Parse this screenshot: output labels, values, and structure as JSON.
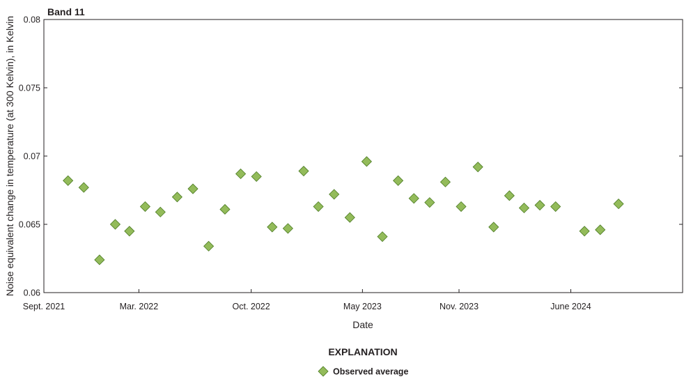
{
  "chart_data": {
    "type": "scatter",
    "title": "Band 11",
    "xlabel": "Date",
    "ylabel": "Noise equivalent change in temperature (at 300 Kelvin), in Kelvin",
    "x_ticks": [
      {
        "date": "2021-09-01",
        "label": "Sept. 2021"
      },
      {
        "date": "2022-03-01",
        "label": "Mar. 2022"
      },
      {
        "date": "2022-10-01",
        "label": "Oct. 2022"
      },
      {
        "date": "2023-05-01",
        "label": "May 2023"
      },
      {
        "date": "2023-11-01",
        "label": "Nov. 2023"
      },
      {
        "date": "2024-06-01",
        "label": "June 2024"
      }
    ],
    "xlim": [
      "2021-09-01",
      "2024-12-31"
    ],
    "ylim": [
      0.06,
      0.08
    ],
    "y_ticks": [
      {
        "value": 0.06,
        "label": "0.06"
      },
      {
        "value": 0.065,
        "label": "0.065"
      },
      {
        "value": 0.07,
        "label": "0.07"
      },
      {
        "value": 0.075,
        "label": "0.075"
      },
      {
        "value": 0.08,
        "label": "0.08"
      }
    ],
    "grid": false,
    "legend": {
      "title": "EXPLANATION",
      "placement": "bottom-center",
      "entries": [
        {
          "label": "Observed average"
        }
      ]
    },
    "series": [
      {
        "name": "Observed average",
        "marker": "diamond",
        "color": "#93bb5a",
        "edge_color": "#4a7a22",
        "points": [
          {
            "x": "2021-10-17",
            "y": 0.0682
          },
          {
            "x": "2021-11-16",
            "y": 0.0677
          },
          {
            "x": "2021-12-16",
            "y": 0.0624
          },
          {
            "x": "2022-01-15",
            "y": 0.065
          },
          {
            "x": "2022-02-11",
            "y": 0.0645
          },
          {
            "x": "2022-03-13",
            "y": 0.0663
          },
          {
            "x": "2022-04-11",
            "y": 0.0659
          },
          {
            "x": "2022-05-13",
            "y": 0.067
          },
          {
            "x": "2022-06-12",
            "y": 0.0676
          },
          {
            "x": "2022-07-12",
            "y": 0.0634
          },
          {
            "x": "2022-08-12",
            "y": 0.0661
          },
          {
            "x": "2022-09-11",
            "y": 0.0687
          },
          {
            "x": "2022-10-11",
            "y": 0.0685
          },
          {
            "x": "2022-11-10",
            "y": 0.0648
          },
          {
            "x": "2022-12-10",
            "y": 0.0647
          },
          {
            "x": "2023-01-09",
            "y": 0.0689
          },
          {
            "x": "2023-02-06",
            "y": 0.0663
          },
          {
            "x": "2023-03-08",
            "y": 0.0672
          },
          {
            "x": "2023-04-07",
            "y": 0.0655
          },
          {
            "x": "2023-05-09",
            "y": 0.0696
          },
          {
            "x": "2023-06-08",
            "y": 0.0641
          },
          {
            "x": "2023-07-08",
            "y": 0.0682
          },
          {
            "x": "2023-08-07",
            "y": 0.0669
          },
          {
            "x": "2023-09-06",
            "y": 0.0666
          },
          {
            "x": "2023-10-06",
            "y": 0.0681
          },
          {
            "x": "2023-11-05",
            "y": 0.0663
          },
          {
            "x": "2023-12-07",
            "y": 0.0692
          },
          {
            "x": "2024-01-06",
            "y": 0.0648
          },
          {
            "x": "2024-02-05",
            "y": 0.0671
          },
          {
            "x": "2024-03-04",
            "y": 0.0662
          },
          {
            "x": "2024-04-03",
            "y": 0.0664
          },
          {
            "x": "2024-05-03",
            "y": 0.0663
          },
          {
            "x": "2024-06-27",
            "y": 0.0645
          },
          {
            "x": "2024-07-27",
            "y": 0.0646
          },
          {
            "x": "2024-08-31",
            "y": 0.0665
          }
        ]
      }
    ]
  }
}
